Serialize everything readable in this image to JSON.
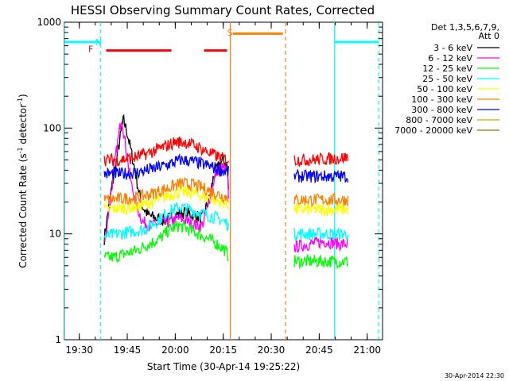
{
  "chart_data": {
    "type": "line",
    "title": "HESSI Observing Summary Count Rates, Corrected",
    "xlabel": "Start Time (30-Apr-14 19:25:22)",
    "ylabel_main": "Corrected Count Rate (s",
    "ylabel_sup1": "-1",
    "ylabel_mid": " detector",
    "ylabel_sup2": "-1",
    "ylabel_end": ")",
    "yscale": "log",
    "xlim": [
      19.4225,
      21.08
    ],
    "ylim": [
      1,
      1000
    ],
    "x_ticks": [
      {
        "value": 19.5,
        "label": "19:30"
      },
      {
        "value": 19.75,
        "label": "19:45"
      },
      {
        "value": 20.0,
        "label": "20:00"
      },
      {
        "value": 20.25,
        "label": "20:15"
      },
      {
        "value": 20.5,
        "label": "20:30"
      },
      {
        "value": 20.75,
        "label": "20:45"
      },
      {
        "value": 21.0,
        "label": "21:00"
      }
    ],
    "y_ticks": [
      {
        "value": 1,
        "label": "1"
      },
      {
        "value": 10,
        "label": "10"
      },
      {
        "value": 100,
        "label": "100"
      },
      {
        "value": 1000,
        "label": "1000"
      }
    ],
    "legend_position": "right",
    "legend_header_1": "Det 1,3,5,6,7,9,",
    "legend_header_2": "Att 0",
    "series": [
      {
        "name": "3 - 6 keV",
        "color": "#000000",
        "points": [
          [
            19.63,
            9
          ],
          [
            19.66,
            22
          ],
          [
            19.69,
            45
          ],
          [
            19.71,
            75
          ],
          [
            19.73,
            120
          ],
          [
            19.75,
            90
          ],
          [
            19.77,
            60
          ],
          [
            19.79,
            40
          ],
          [
            19.81,
            25
          ],
          [
            19.83,
            18
          ],
          [
            19.86,
            15
          ],
          [
            19.9,
            14
          ],
          [
            19.95,
            13.5
          ],
          [
            20.0,
            15
          ],
          [
            20.05,
            16
          ],
          [
            20.1,
            15
          ],
          [
            20.14,
            14
          ],
          [
            20.18,
            22
          ],
          [
            20.2,
            35
          ],
          [
            20.23,
            45
          ],
          [
            20.25,
            50
          ],
          [
            20.27,
            45
          ],
          [
            20.28,
            22
          ]
        ]
      },
      {
        "name": "6 - 12 keV",
        "color": "#ff00ff",
        "points": [
          [
            19.63,
            8
          ],
          [
            19.66,
            20
          ],
          [
            19.69,
            55
          ],
          [
            19.72,
            130
          ],
          [
            19.74,
            70
          ],
          [
            19.77,
            30
          ],
          [
            19.8,
            18
          ],
          [
            19.83,
            13
          ],
          [
            19.87,
            12
          ],
          [
            19.92,
            12.5
          ],
          [
            19.97,
            13
          ],
          [
            20.02,
            14
          ],
          [
            20.07,
            13
          ],
          [
            20.11,
            12
          ],
          [
            20.14,
            12
          ],
          [
            20.17,
            18
          ],
          [
            20.2,
            32
          ],
          [
            20.22,
            40
          ],
          [
            20.25,
            42
          ],
          [
            20.27,
            38
          ],
          [
            20.28,
            20
          ],
          [
            20.62,
            7.5
          ],
          [
            20.7,
            8
          ],
          [
            20.78,
            8.5
          ],
          [
            20.86,
            8
          ],
          [
            20.9,
            8
          ]
        ]
      },
      {
        "name": "12 - 25 keV",
        "color": "#00ff00",
        "points": [
          [
            19.63,
            6
          ],
          [
            19.68,
            6
          ],
          [
            19.74,
            6.5
          ],
          [
            19.8,
            7
          ],
          [
            19.86,
            8
          ],
          [
            19.92,
            9
          ],
          [
            19.97,
            11
          ],
          [
            20.02,
            12
          ],
          [
            20.07,
            11
          ],
          [
            20.12,
            10
          ],
          [
            20.17,
            9
          ],
          [
            20.22,
            8
          ],
          [
            20.26,
            7
          ],
          [
            20.28,
            6
          ],
          [
            20.62,
            5.5
          ],
          [
            20.7,
            5.5
          ],
          [
            20.78,
            5.5
          ],
          [
            20.86,
            5.5
          ],
          [
            20.9,
            5.5
          ]
        ]
      },
      {
        "name": "25 - 50 keV",
        "color": "#00ffff",
        "points": [
          [
            19.63,
            9.5
          ],
          [
            19.7,
            10
          ],
          [
            19.77,
            10.5
          ],
          [
            19.84,
            11
          ],
          [
            19.9,
            13
          ],
          [
            19.96,
            16
          ],
          [
            20.02,
            18
          ],
          [
            20.07,
            17
          ],
          [
            20.12,
            16
          ],
          [
            20.17,
            15
          ],
          [
            20.22,
            14
          ],
          [
            20.26,
            13
          ],
          [
            20.28,
            12
          ],
          [
            20.62,
            10
          ],
          [
            20.7,
            10
          ],
          [
            20.78,
            10
          ],
          [
            20.86,
            10
          ],
          [
            20.9,
            10
          ]
        ]
      },
      {
        "name": "50 - 100 keV",
        "color": "#ffff00",
        "points": [
          [
            19.63,
            17
          ],
          [
            19.72,
            17.5
          ],
          [
            19.8,
            18
          ],
          [
            19.88,
            20
          ],
          [
            19.96,
            23
          ],
          [
            20.03,
            25
          ],
          [
            20.1,
            24
          ],
          [
            20.17,
            22
          ],
          [
            20.24,
            20
          ],
          [
            20.28,
            19
          ],
          [
            20.62,
            17
          ],
          [
            20.7,
            17
          ],
          [
            20.78,
            17
          ],
          [
            20.86,
            17
          ],
          [
            20.9,
            17
          ]
        ]
      },
      {
        "name": "100 - 300 keV",
        "color": "#ff8000",
        "points": [
          [
            19.63,
            21
          ],
          [
            19.72,
            21.5
          ],
          [
            19.8,
            22
          ],
          [
            19.88,
            24
          ],
          [
            19.96,
            27
          ],
          [
            20.03,
            30
          ],
          [
            20.1,
            29
          ],
          [
            20.17,
            26
          ],
          [
            20.24,
            23
          ],
          [
            20.28,
            22
          ],
          [
            20.62,
            21
          ],
          [
            20.7,
            21
          ],
          [
            20.78,
            21
          ],
          [
            20.86,
            21
          ],
          [
            20.9,
            21
          ]
        ]
      },
      {
        "name": "300 - 800 keV",
        "color": "#0000ff",
        "points": [
          [
            19.63,
            37
          ],
          [
            19.72,
            37
          ],
          [
            19.8,
            38
          ],
          [
            19.88,
            41
          ],
          [
            19.96,
            45
          ],
          [
            20.03,
            50
          ],
          [
            20.1,
            48
          ],
          [
            20.17,
            44
          ],
          [
            20.24,
            40
          ],
          [
            20.28,
            38
          ],
          [
            20.62,
            35
          ],
          [
            20.7,
            35
          ],
          [
            20.78,
            35
          ],
          [
            20.86,
            35
          ],
          [
            20.9,
            35
          ]
        ]
      },
      {
        "name": "800 - 7000 keV",
        "color": "#d4a000",
        "points": []
      },
      {
        "name": "7000 - 20000 keV",
        "color": "#808000",
        "points": []
      },
      {
        "name": "",
        "color": "#ff0000",
        "points": [
          [
            19.63,
            50
          ],
          [
            19.7,
            50
          ],
          [
            19.78,
            52
          ],
          [
            19.86,
            58
          ],
          [
            19.94,
            66
          ],
          [
            20.0,
            74
          ],
          [
            20.06,
            73
          ],
          [
            20.12,
            66
          ],
          [
            20.18,
            58
          ],
          [
            20.24,
            52
          ],
          [
            20.28,
            50
          ],
          [
            20.62,
            50
          ],
          [
            20.7,
            50
          ],
          [
            20.78,
            51
          ],
          [
            20.86,
            52
          ],
          [
            20.9,
            53
          ]
        ]
      }
    ],
    "flags": [
      {
        "label": "N",
        "color": "#00ffff",
        "x": 19.6,
        "y": 650
      },
      {
        "label": "F",
        "color": "#ff0000",
        "x": 19.56,
        "y": 560
      },
      {
        "label": "S",
        "color": "#ff8000",
        "x": 20.285,
        "y": 800
      }
    ],
    "timestamp": "30-Apr-2014 22:30"
  }
}
